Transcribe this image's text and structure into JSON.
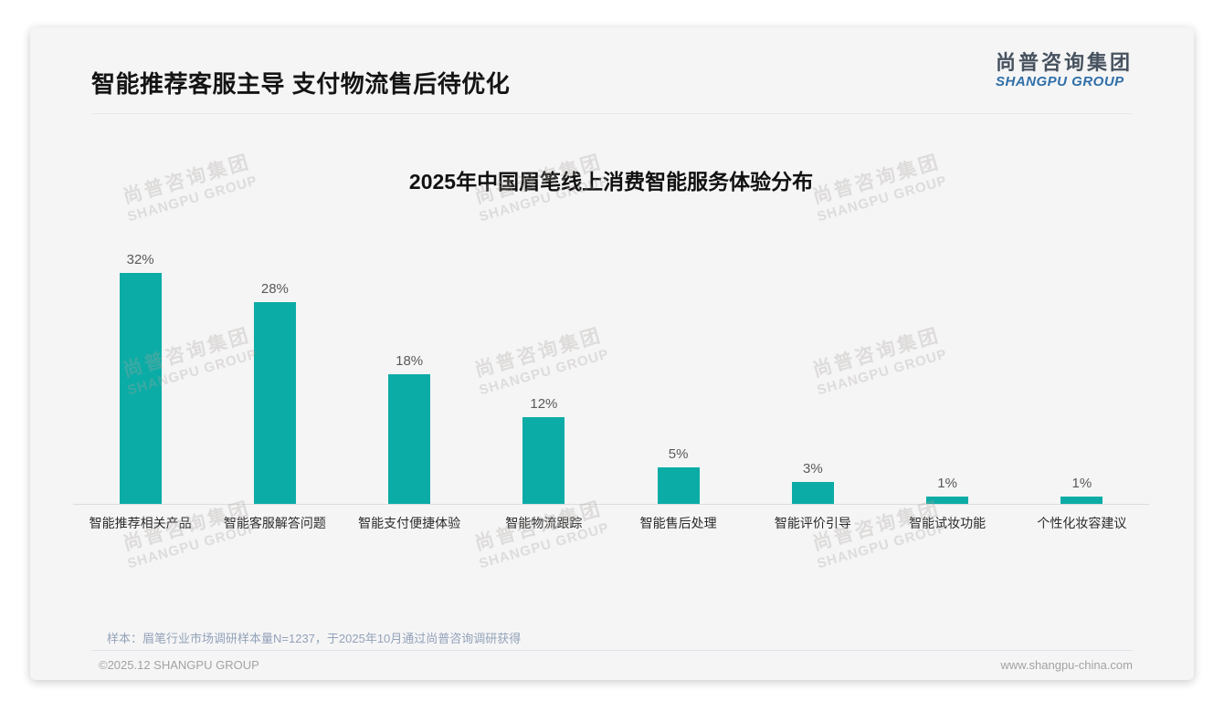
{
  "page": {
    "title": "智能推荐客服主导 支付物流售后待优化",
    "logo": {
      "cn": "尚普咨询集团",
      "en": "SHANGPU GROUP"
    },
    "watermark": {
      "cn": "尚普咨询集团",
      "en": "SHANGPU GROUP"
    },
    "footer": {
      "sample_note": "样本：眉笔行业市场调研样本量N=1237，于2025年10月通过尚普咨询调研获得",
      "copyright": "©2025.12 SHANGPU GROUP",
      "website": "www.shangpu-china.com"
    }
  },
  "chart_data": {
    "type": "bar",
    "title": "2025年中国眉笔线上消费智能服务体验分布",
    "categories": [
      "智能推荐相关产品",
      "智能客服解答问题",
      "智能支付便捷体验",
      "智能物流跟踪",
      "智能售后处理",
      "智能评价引导",
      "智能试妆功能",
      "个性化妆容建议"
    ],
    "values": [
      32,
      28,
      18,
      12,
      5,
      3,
      1,
      1
    ],
    "data_labels": [
      "32%",
      "28%",
      "18%",
      "12%",
      "5%",
      "3%",
      "1%",
      "1%"
    ],
    "unit": "%",
    "bar_color": "#0caca6",
    "value_label_color": "#595959",
    "ylim": [
      0,
      35
    ],
    "grid": false,
    "legend": "none",
    "xlabel": "",
    "ylabel": ""
  }
}
